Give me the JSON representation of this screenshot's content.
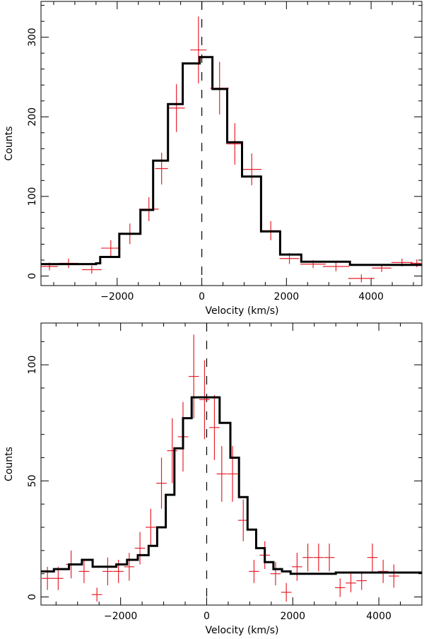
{
  "chart_data": [
    {
      "type": "line",
      "style": "step-with-error-bars",
      "title": "",
      "xlabel": "Velocity (km/s)",
      "ylabel": "Counts",
      "xlim": [
        -3800,
        5200
      ],
      "ylim": [
        -12,
        345
      ],
      "xticks": [
        -2000,
        0,
        2000,
        4000
      ],
      "yticks": [
        0,
        100,
        200,
        300
      ],
      "xtick_labels": [
        "−2000",
        "0",
        "2000",
        "4000"
      ],
      "ytick_labels": [
        "0",
        "100",
        "200",
        "300"
      ],
      "zero_line_x": 0,
      "colors": {
        "model": "#000000",
        "data": "#e8202a",
        "zero_line": "#000000"
      },
      "series": [
        {
          "name": "model",
          "kind": "step",
          "edges": [
            -3800,
            -2500,
            -2400,
            -1950,
            -1450,
            -1150,
            -800,
            -450,
            -50,
            250,
            600,
            950,
            1400,
            1850,
            2350,
            3500,
            5200
          ],
          "values": [
            15,
            16,
            24,
            53,
            83,
            145,
            216,
            267,
            275,
            235,
            168,
            125,
            56,
            27,
            18,
            14
          ]
        },
        {
          "name": "data",
          "kind": "error-bars",
          "points": [
            {
              "x": -3600,
              "y": 12,
              "xerr": 200,
              "yerr": 5
            },
            {
              "x": -3150,
              "y": 16,
              "xerr": 230,
              "yerr": 6
            },
            {
              "x": -2600,
              "y": 8,
              "xerr": 230,
              "yerr": 5
            },
            {
              "x": -2150,
              "y": 35,
              "xerr": 230,
              "yerr": 10
            },
            {
              "x": -1700,
              "y": 53,
              "xerr": 230,
              "yerr": 13
            },
            {
              "x": -1250,
              "y": 84,
              "xerr": 230,
              "yerr": 15
            },
            {
              "x": -950,
              "y": 135,
              "xerr": 150,
              "yerr": 20
            },
            {
              "x": -600,
              "y": 211,
              "xerr": 200,
              "yerr": 30
            },
            {
              "x": -80,
              "y": 284,
              "xerr": 190,
              "yerr": 42
            },
            {
              "x": 420,
              "y": 236,
              "xerr": 220,
              "yerr": 33
            },
            {
              "x": 780,
              "y": 166,
              "xerr": 200,
              "yerr": 26
            },
            {
              "x": 1180,
              "y": 134,
              "xerr": 230,
              "yerr": 20
            },
            {
              "x": 1630,
              "y": 57,
              "xerr": 230,
              "yerr": 12
            },
            {
              "x": 2070,
              "y": 22,
              "xerr": 230,
              "yerr": 7
            },
            {
              "x": 2630,
              "y": 15,
              "xerr": 300,
              "yerr": 5
            },
            {
              "x": 3170,
              "y": 12,
              "xerr": 310,
              "yerr": 6
            },
            {
              "x": 3770,
              "y": -3,
              "xerr": 310,
              "yerr": 5
            },
            {
              "x": 4250,
              "y": 10,
              "xerr": 230,
              "yerr": 5
            },
            {
              "x": 4730,
              "y": 17,
              "xerr": 250,
              "yerr": 5
            },
            {
              "x": 5080,
              "y": 16,
              "xerr": 150,
              "yerr": 5
            }
          ]
        }
      ]
    },
    {
      "type": "line",
      "style": "step-with-error-bars",
      "title": "",
      "xlabel": "Velocity (km/s)",
      "ylabel": "Counts",
      "xlim": [
        -3850,
        5000
      ],
      "ylim": [
        -3.5,
        118
      ],
      "xticks": [
        -2000,
        0,
        2000,
        4000
      ],
      "yticks": [
        0,
        50,
        100
      ],
      "xtick_labels": [
        "−2000",
        "0",
        "2000",
        "4000"
      ],
      "ytick_labels": [
        "0",
        "50",
        "100"
      ],
      "zero_line_x": 0,
      "colors": {
        "model": "#000000",
        "data": "#e8202a",
        "zero_line": "#000000"
      },
      "series": [
        {
          "name": "model",
          "kind": "step",
          "edges": [
            -3850,
            -3550,
            -3200,
            -2900,
            -2650,
            -2100,
            -1850,
            -1600,
            -1350,
            -1150,
            -950,
            -750,
            -550,
            -350,
            -100,
            300,
            550,
            750,
            950,
            1150,
            1350,
            1550,
            1750,
            1950,
            2250,
            3000,
            4000,
            5000
          ],
          "values": [
            11,
            12,
            14,
            16,
            13,
            14,
            16,
            18,
            22,
            30,
            44,
            64,
            77,
            86,
            86,
            75,
            60,
            43,
            29,
            21,
            15,
            12,
            11,
            10,
            10,
            10.5,
            10.5
          ]
        },
        {
          "name": "data",
          "kind": "error-bars",
          "points": [
            {
              "x": -3700,
              "y": 8,
              "xerr": 130,
              "yerr": 5
            },
            {
              "x": -3450,
              "y": 8,
              "xerr": 120,
              "yerr": 5
            },
            {
              "x": -3150,
              "y": 14,
              "xerr": 120,
              "yerr": 6
            },
            {
              "x": -2850,
              "y": 11,
              "xerr": 120,
              "yerr": 5
            },
            {
              "x": -2550,
              "y": 1,
              "xerr": 120,
              "yerr": 3
            },
            {
              "x": -2300,
              "y": 11,
              "xerr": 120,
              "yerr": 6
            },
            {
              "x": -2050,
              "y": 11,
              "xerr": 120,
              "yerr": 5
            },
            {
              "x": -1800,
              "y": 13,
              "xerr": 120,
              "yerr": 6
            },
            {
              "x": -1550,
              "y": 21,
              "xerr": 120,
              "yerr": 7
            },
            {
              "x": -1300,
              "y": 30,
              "xerr": 120,
              "yerr": 8
            },
            {
              "x": -1050,
              "y": 49,
              "xerr": 120,
              "yerr": 11
            },
            {
              "x": -800,
              "y": 63,
              "xerr": 120,
              "yerr": 14
            },
            {
              "x": -550,
              "y": 69,
              "xerr": 120,
              "yerr": 15
            },
            {
              "x": -300,
              "y": 95,
              "xerr": 120,
              "yerr": 18
            },
            {
              "x": -50,
              "y": 85,
              "xerr": 120,
              "yerr": 17
            },
            {
              "x": 180,
              "y": 73,
              "xerr": 120,
              "yerr": 14
            },
            {
              "x": 350,
              "y": 53,
              "xerr": 120,
              "yerr": 12
            },
            {
              "x": 600,
              "y": 53,
              "xerr": 120,
              "yerr": 12
            },
            {
              "x": 850,
              "y": 33,
              "xerr": 120,
              "yerr": 9
            },
            {
              "x": 1100,
              "y": 11,
              "xerr": 120,
              "yerr": 5
            },
            {
              "x": 1350,
              "y": 18,
              "xerr": 120,
              "yerr": 6
            },
            {
              "x": 1600,
              "y": 10,
              "xerr": 120,
              "yerr": 5
            },
            {
              "x": 1850,
              "y": 2,
              "xerr": 120,
              "yerr": 4
            },
            {
              "x": 2100,
              "y": 13,
              "xerr": 120,
              "yerr": 6
            },
            {
              "x": 2350,
              "y": 17,
              "xerr": 120,
              "yerr": 6
            },
            {
              "x": 2600,
              "y": 17,
              "xerr": 120,
              "yerr": 6
            },
            {
              "x": 2850,
              "y": 17,
              "xerr": 120,
              "yerr": 6
            },
            {
              "x": 3100,
              "y": 4,
              "xerr": 120,
              "yerr": 4
            },
            {
              "x": 3350,
              "y": 6,
              "xerr": 120,
              "yerr": 4
            },
            {
              "x": 3600,
              "y": 7,
              "xerr": 120,
              "yerr": 4
            },
            {
              "x": 3850,
              "y": 17,
              "xerr": 120,
              "yerr": 6
            },
            {
              "x": 4100,
              "y": 11,
              "xerr": 120,
              "yerr": 5
            },
            {
              "x": 4350,
              "y": 9,
              "xerr": 120,
              "yerr": 5
            }
          ]
        }
      ]
    }
  ]
}
